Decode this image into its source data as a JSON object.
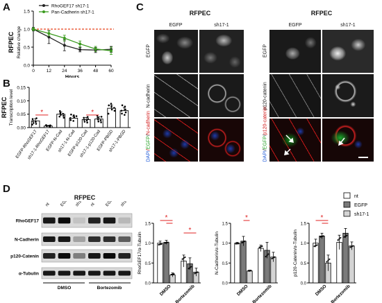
{
  "panels": {
    "A": "A",
    "B": "B",
    "C": "C",
    "D": "D"
  },
  "colors": {
    "black": "#222222",
    "green": "#3a9a1e",
    "red": "#e02020",
    "red_dash": "#e8401a",
    "bar_gray": "#c8c8c8"
  },
  "panelA": {
    "title": "RFPEC",
    "ylabel": "Relative change",
    "xlabel": "Hours",
    "legend": [
      "RhoGEF17 sh17-1",
      "Pan-Cadherin sh17-1"
    ],
    "chart_data": {
      "type": "line",
      "x": [
        0,
        12,
        24,
        36,
        48,
        60
      ],
      "xticks": [
        "0",
        "12",
        "24",
        "36",
        "48",
        "60"
      ],
      "yticks": [
        "0.0",
        "0.5",
        "1.0",
        "1.5"
      ],
      "ylim": [
        0,
        1.5
      ],
      "series": [
        {
          "name": "RhoGEF17 sh17-1",
          "color": "#222222",
          "values": [
            1.0,
            0.78,
            0.55,
            0.43,
            0.42,
            0.44
          ],
          "err": [
            0.05,
            0.18,
            0.15,
            0.06,
            0.07,
            0.08
          ]
        },
        {
          "name": "Pan-Cadherin sh17-1",
          "color": "#3a9a1e",
          "values": [
            1.0,
            0.88,
            0.75,
            0.59,
            0.45,
            0.4
          ],
          "err": [
            0.04,
            0.07,
            0.08,
            0.08,
            0.07,
            0.1
          ]
        }
      ],
      "reference_line": 1.0
    }
  },
  "panelB": {
    "title": "RFPEC",
    "ylabel": "Transcription level",
    "chart_data": {
      "type": "bar",
      "categories": [
        "EGFP-RhoGEF17",
        "sh17-1-RhoGEF17",
        "EGFP-N-Cad",
        "sh17-1-N-Cad",
        "EGFP-p120-Cad",
        "sh17-1-p120-Cad",
        "EGFP-PBGD",
        "sh17-1-PBGD"
      ],
      "values": [
        0.025,
        0.006,
        0.05,
        0.035,
        0.03,
        0.032,
        0.072,
        0.063
      ],
      "err": [
        0.008,
        0.002,
        0.008,
        0.008,
        0.008,
        0.008,
        0.012,
        0.012
      ],
      "ylim": [
        0,
        0.15
      ],
      "yticks": [
        "0.00",
        "0.05",
        "0.10",
        "0.15"
      ],
      "significance": [
        [
          0,
          1
        ],
        [
          4,
          5
        ]
      ],
      "sig_mark": "*"
    }
  },
  "panelC": {
    "title_left": "RFPEC",
    "title_right": "RFPEC",
    "col_left": [
      "EGFP",
      "sh17-1"
    ],
    "col_right": [
      "EGFP",
      "sh17-1"
    ],
    "rows_left": [
      "EGFP",
      "N-cadherin"
    ],
    "merge_left": {
      "a": "DAPI",
      "b": "EGFP",
      "c": "N-cadherin"
    },
    "rows_right": [
      "EGFP",
      "p120-catenin"
    ],
    "merge_right": {
      "a": "DAPI",
      "b": "EGFP",
      "c": "p120-catenin"
    },
    "slash": "/"
  },
  "panelD": {
    "title": "RFPEC",
    "lanes": [
      "nt",
      "EGFP",
      "sh17-1",
      "nt",
      "EGFP",
      "sh17-1"
    ],
    "blots": [
      "RhoGEF17",
      "N-Cadherin",
      "p120-Catenin",
      "α-Tubulin"
    ],
    "groups": [
      "DMSO",
      "Bortezomib"
    ],
    "legend": [
      "nt",
      "EGFP",
      "sh17-1"
    ],
    "charts": [
      {
        "type": "bar",
        "ylabel": "RhoGEF17/α-Tubulin",
        "groups": [
          "DMSO",
          "Bortezomib"
        ],
        "values": [
          [
            1.0,
            1.02,
            0.2
          ],
          [
            0.55,
            0.48,
            0.27
          ]
        ],
        "err": [
          [
            0.05,
            0.05,
            0.05
          ],
          [
            0.15,
            0.15,
            0.1
          ]
        ],
        "ylim": [
          0,
          1.5
        ],
        "yticks": [
          "0.0",
          "0.5",
          "1.0",
          "1.5"
        ],
        "sig": [
          [
            [
              0,
              0
            ],
            [
              0,
              2
            ]
          ],
          [
            [
              0,
              1
            ],
            [
              0,
              2
            ]
          ],
          [
            [
              1,
              0
            ],
            [
              1,
              2
            ]
          ]
        ]
      },
      {
        "type": "bar",
        "ylabel": "N-Cadherin/α-Tubulin",
        "groups": [
          "DMSO",
          "Bortezomib"
        ],
        "values": [
          [
            1.0,
            1.05,
            0.3
          ],
          [
            0.87,
            0.82,
            0.65
          ]
        ],
        "err": [
          [
            0.02,
            0.12,
            0.02
          ],
          [
            0.08,
            0.2,
            0.12
          ]
        ],
        "ylim": [
          0,
          1.5
        ],
        "yticks": [
          "0.0",
          "0.5",
          "1.0",
          "1.5"
        ],
        "sig": [
          [
            [
              0,
              1
            ],
            [
              0,
              2
            ]
          ]
        ]
      },
      {
        "type": "bar",
        "ylabel": "p120-Catenin/α-Tubulin",
        "groups": [
          "DMSO",
          "Bortezomib"
        ],
        "values": [
          [
            1.0,
            1.18,
            0.5
          ],
          [
            1.02,
            1.25,
            0.93
          ]
        ],
        "err": [
          [
            0.1,
            0.07,
            0.2
          ],
          [
            0.18,
            0.12,
            0.1
          ]
        ],
        "ylim": [
          0,
          1.5
        ],
        "yticks": [
          "0.0",
          "0.5",
          "1.0",
          "1.5"
        ],
        "sig": [
          [
            [
              0,
              0
            ],
            [
              0,
              2
            ]
          ],
          [
            [
              0,
              1
            ],
            [
              0,
              2
            ]
          ]
        ]
      }
    ],
    "sig_mark": "*"
  }
}
